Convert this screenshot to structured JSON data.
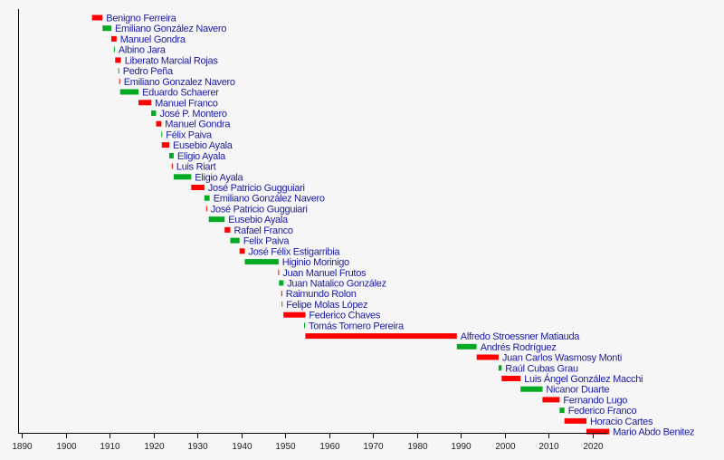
{
  "chart_data": {
    "type": "timeline",
    "title": "",
    "xlabel": "",
    "ylabel": "",
    "xlim": [
      1888.5,
      2023.5
    ],
    "x_ticks": [
      1890,
      1900,
      1910,
      1920,
      1930,
      1940,
      1950,
      1960,
      1970,
      1980,
      1990,
      2000,
      2010,
      2020
    ],
    "grid": false,
    "legend": "none",
    "colors": {
      "red": "#ff0000",
      "green": "#00aa22",
      "label": "#1a1aa6",
      "axis": "#000000"
    },
    "series": [
      {
        "name": "Benigno Ferreira",
        "start": 1906.0,
        "end": 1908.4,
        "color": "red"
      },
      {
        "name": "Emiliano González Navero",
        "start": 1908.4,
        "end": 1910.4,
        "color": "green"
      },
      {
        "name": "Manuel Gondra",
        "start": 1910.4,
        "end": 1911.6,
        "color": "red"
      },
      {
        "name": "Albino Jara",
        "start": 1911.0,
        "end": 1911.2,
        "color": "green"
      },
      {
        "name": "Liberato Marcial Rojas",
        "start": 1911.3,
        "end": 1912.6,
        "color": "red"
      },
      {
        "name": "Pedro Peña",
        "start": 1912.0,
        "end": 1912.2,
        "color": "green"
      },
      {
        "name": "Emiliano Gonzalez Navero",
        "start": 1912.2,
        "end": 1912.4,
        "color": "red"
      },
      {
        "name": "Eduardo Schaerer",
        "start": 1912.4,
        "end": 1916.6,
        "color": "green"
      },
      {
        "name": "Manuel Franco",
        "start": 1916.6,
        "end": 1919.5,
        "color": "red"
      },
      {
        "name": "José P. Montero",
        "start": 1919.5,
        "end": 1920.6,
        "color": "green"
      },
      {
        "name": "Manuel Gondra",
        "start": 1920.6,
        "end": 1921.8,
        "color": "red"
      },
      {
        "name": "Félix Paiva",
        "start": 1921.8,
        "end": 1921.9,
        "color": "green"
      },
      {
        "name": "Eusebio Ayala",
        "start": 1921.9,
        "end": 1923.6,
        "color": "red"
      },
      {
        "name": "Eligio Ayala",
        "start": 1923.6,
        "end": 1924.6,
        "color": "green"
      },
      {
        "name": "Luis Riart",
        "start": 1924.2,
        "end": 1924.4,
        "color": "red"
      },
      {
        "name": "Eligio Ayala",
        "start": 1924.6,
        "end": 1928.6,
        "color": "green"
      },
      {
        "name": "José Patricio Gugguiari",
        "start": 1928.6,
        "end": 1931.6,
        "color": "red"
      },
      {
        "name": "Emiliano González Navero",
        "start": 1931.6,
        "end": 1932.8,
        "color": "green"
      },
      {
        "name": "José Patricio Gugguiari",
        "start": 1932.0,
        "end": 1932.2,
        "color": "red"
      },
      {
        "name": "Eusebio Ayala",
        "start": 1932.6,
        "end": 1936.2,
        "color": "green"
      },
      {
        "name": "Rafael Franco",
        "start": 1936.2,
        "end": 1937.5,
        "color": "red"
      },
      {
        "name": "Felix Paiva",
        "start": 1937.5,
        "end": 1939.6,
        "color": "green"
      },
      {
        "name": "José Félix Estigarribia",
        "start": 1939.6,
        "end": 1940.8,
        "color": "red"
      },
      {
        "name": "Higinio Morinigo",
        "start": 1940.8,
        "end": 1948.5,
        "color": "green"
      },
      {
        "name": "Juan Manuel Frutos",
        "start": 1948.4,
        "end": 1948.6,
        "color": "red"
      },
      {
        "name": "Juan Natalico González",
        "start": 1948.6,
        "end": 1949.6,
        "color": "green"
      },
      {
        "name": "Raimundo Rolon",
        "start": 1949.1,
        "end": 1949.3,
        "color": "red"
      },
      {
        "name": "Felipe Molas López",
        "start": 1949.2,
        "end": 1949.4,
        "color": "green"
      },
      {
        "name": "Federico Chaves",
        "start": 1949.6,
        "end": 1954.6,
        "color": "red"
      },
      {
        "name": "Tomás Tornero Pereira",
        "start": 1954.3,
        "end": 1954.5,
        "color": "green"
      },
      {
        "name": "Alfredo Stroessner Matiauda",
        "start": 1954.6,
        "end": 1989.1,
        "color": "red"
      },
      {
        "name": "Andrés Rodríguez",
        "start": 1989.1,
        "end": 1993.6,
        "color": "green"
      },
      {
        "name": "Juan Carlos Wasmosy Monti",
        "start": 1993.6,
        "end": 1998.6,
        "color": "red"
      },
      {
        "name": "Raúl Cubas Grau",
        "start": 1998.6,
        "end": 1999.3,
        "color": "green"
      },
      {
        "name": "Luis Ángel González Macchi",
        "start": 1999.3,
        "end": 2003.6,
        "color": "red"
      },
      {
        "name": "Nicanor Duarte",
        "start": 2003.6,
        "end": 2008.6,
        "color": "green"
      },
      {
        "name": "Fernando Lugo",
        "start": 2008.6,
        "end": 2012.5,
        "color": "red"
      },
      {
        "name": "Federico Franco",
        "start": 2012.5,
        "end": 2013.6,
        "color": "green"
      },
      {
        "name": "Horacio Cartes",
        "start": 2013.6,
        "end": 2018.6,
        "color": "red"
      },
      {
        "name": "Mario Abdo Benitez",
        "start": 2018.6,
        "end": 2023.8,
        "color": "red"
      }
    ]
  }
}
